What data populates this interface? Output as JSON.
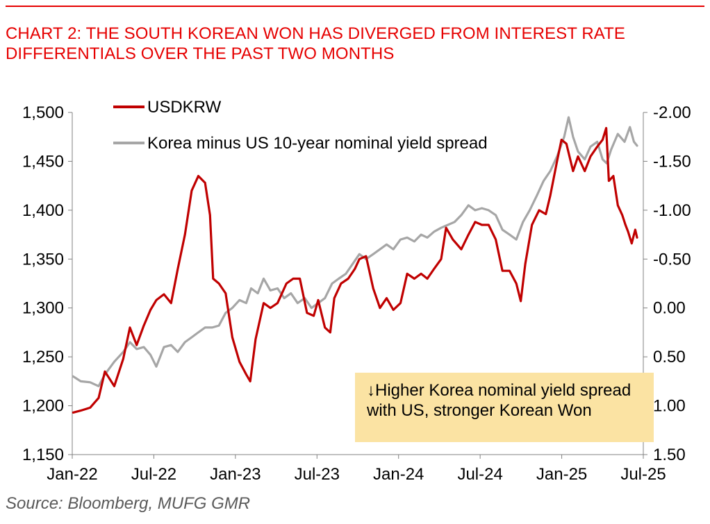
{
  "header": {
    "title": "CHART 2: THE SOUTH KOREAN WON HAS DIVERGED FROM INTEREST RATE DIFFERENTIALS OVER THE PAST TWO MONTHS"
  },
  "footer": {
    "source": "Source: Bloomberg, MUFG GMR"
  },
  "annotation": {
    "text": "↓Higher Korea nominal yield spread with US, stronger Korean Won"
  },
  "colors": {
    "title": "#e60000",
    "usdkrw": "#c00000",
    "spread": "#a6a6a6",
    "annotation_bg": "#fbe3a3",
    "axis": "#808080"
  },
  "chart_data": {
    "type": "line",
    "title": "CHART 2: THE SOUTH KOREAN WON HAS DIVERGED FROM INTEREST RATE DIFFERENTIALS OVER THE PAST TWO MONTHS",
    "x_tick_labels": [
      "Jan-22",
      "Jul-22",
      "Jan-23",
      "Jul-23",
      "Jan-24",
      "Jul-24",
      "Jan-25",
      "Jul-25"
    ],
    "x_range": [
      "2022-01-01",
      "2025-07-01"
    ],
    "y_left": {
      "ylim": [
        1150,
        1500
      ],
      "ticks": [
        1150,
        1200,
        1250,
        1300,
        1350,
        1400,
        1450,
        1500
      ],
      "tick_labels": [
        "1,150",
        "1,200",
        "1,250",
        "1,300",
        "1,350",
        "1,400",
        "1,450",
        "1,500"
      ]
    },
    "y_right": {
      "ylim": [
        1.5,
        -2.0
      ],
      "inverted": true,
      "ticks": [
        1.5,
        1.0,
        0.5,
        0.0,
        -0.5,
        -1.0,
        -1.5,
        -2.0
      ],
      "tick_labels": [
        "1.50",
        "1.00",
        "0.50",
        "0.00",
        "-0.50",
        "-1.00",
        "-1.50",
        "-2.00"
      ]
    },
    "grid": false,
    "legend_position": "top-left",
    "series": [
      {
        "name": "USDKRW",
        "axis": "left",
        "color": "#c00000",
        "points": [
          [
            "2022-01-03",
            1193
          ],
          [
            "2022-01-20",
            1195
          ],
          [
            "2022-02-10",
            1198
          ],
          [
            "2022-03-01",
            1208
          ],
          [
            "2022-03-15",
            1235
          ],
          [
            "2022-04-05",
            1220
          ],
          [
            "2022-04-25",
            1248
          ],
          [
            "2022-05-10",
            1280
          ],
          [
            "2022-05-25",
            1262
          ],
          [
            "2022-06-10",
            1282
          ],
          [
            "2022-06-25",
            1298
          ],
          [
            "2022-07-08",
            1308
          ],
          [
            "2022-07-25",
            1314
          ],
          [
            "2022-08-10",
            1305
          ],
          [
            "2022-08-25",
            1340
          ],
          [
            "2022-09-10",
            1375
          ],
          [
            "2022-09-25",
            1420
          ],
          [
            "2022-10-10",
            1435
          ],
          [
            "2022-10-25",
            1428
          ],
          [
            "2022-11-05",
            1395
          ],
          [
            "2022-11-12",
            1330
          ],
          [
            "2022-11-25",
            1325
          ],
          [
            "2022-12-10",
            1315
          ],
          [
            "2022-12-25",
            1270
          ],
          [
            "2023-01-10",
            1245
          ],
          [
            "2023-01-25",
            1232
          ],
          [
            "2023-02-03",
            1225
          ],
          [
            "2023-02-15",
            1268
          ],
          [
            "2023-03-05",
            1305
          ],
          [
            "2023-03-20",
            1300
          ],
          [
            "2023-04-05",
            1305
          ],
          [
            "2023-04-25",
            1325
          ],
          [
            "2023-05-10",
            1330
          ],
          [
            "2023-05-25",
            1330
          ],
          [
            "2023-06-10",
            1295
          ],
          [
            "2023-06-25",
            1292
          ],
          [
            "2023-07-05",
            1308
          ],
          [
            "2023-07-20",
            1280
          ],
          [
            "2023-08-01",
            1275
          ],
          [
            "2023-08-10",
            1310
          ],
          [
            "2023-08-25",
            1325
          ],
          [
            "2023-09-10",
            1330
          ],
          [
            "2023-09-25",
            1340
          ],
          [
            "2023-10-05",
            1350
          ],
          [
            "2023-10-20",
            1353
          ],
          [
            "2023-11-05",
            1320
          ],
          [
            "2023-11-20",
            1300
          ],
          [
            "2023-12-05",
            1310
          ],
          [
            "2023-12-20",
            1298
          ],
          [
            "2024-01-05",
            1305
          ],
          [
            "2024-01-20",
            1335
          ],
          [
            "2024-02-05",
            1330
          ],
          [
            "2024-02-20",
            1335
          ],
          [
            "2024-03-05",
            1330
          ],
          [
            "2024-03-20",
            1340
          ],
          [
            "2024-04-05",
            1350
          ],
          [
            "2024-04-16",
            1382
          ],
          [
            "2024-05-01",
            1370
          ],
          [
            "2024-05-20",
            1360
          ],
          [
            "2024-06-05",
            1375
          ],
          [
            "2024-06-20",
            1388
          ],
          [
            "2024-07-05",
            1385
          ],
          [
            "2024-07-20",
            1385
          ],
          [
            "2024-08-05",
            1370
          ],
          [
            "2024-08-20",
            1338
          ],
          [
            "2024-09-05",
            1338
          ],
          [
            "2024-09-20",
            1325
          ],
          [
            "2024-09-30",
            1307
          ],
          [
            "2024-10-10",
            1345
          ],
          [
            "2024-10-25",
            1385
          ],
          [
            "2024-11-10",
            1400
          ],
          [
            "2024-11-25",
            1396
          ],
          [
            "2024-12-05",
            1415
          ],
          [
            "2024-12-20",
            1450
          ],
          [
            "2024-12-30",
            1472
          ],
          [
            "2025-01-10",
            1468
          ],
          [
            "2025-01-25",
            1440
          ],
          [
            "2025-02-05",
            1455
          ],
          [
            "2025-02-20",
            1440
          ],
          [
            "2025-03-05",
            1455
          ],
          [
            "2025-03-20",
            1465
          ],
          [
            "2025-04-01",
            1472
          ],
          [
            "2025-04-09",
            1484
          ],
          [
            "2025-04-15",
            1430
          ],
          [
            "2025-04-25",
            1435
          ],
          [
            "2025-05-05",
            1405
          ],
          [
            "2025-05-15",
            1395
          ],
          [
            "2025-05-22",
            1385
          ],
          [
            "2025-05-28",
            1378
          ],
          [
            "2025-06-05",
            1366
          ],
          [
            "2025-06-10",
            1375
          ],
          [
            "2025-06-13",
            1380
          ],
          [
            "2025-06-17",
            1372
          ]
        ]
      },
      {
        "name": "Korea minus US 10-year nominal yield spread",
        "axis": "right",
        "color": "#a6a6a6",
        "points": [
          [
            "2022-01-03",
            0.7
          ],
          [
            "2022-01-20",
            0.75
          ],
          [
            "2022-02-10",
            0.76
          ],
          [
            "2022-03-01",
            0.8
          ],
          [
            "2022-03-15",
            0.68
          ],
          [
            "2022-04-05",
            0.55
          ],
          [
            "2022-04-25",
            0.45
          ],
          [
            "2022-05-10",
            0.35
          ],
          [
            "2022-05-25",
            0.42
          ],
          [
            "2022-06-10",
            0.4
          ],
          [
            "2022-06-25",
            0.48
          ],
          [
            "2022-07-08",
            0.6
          ],
          [
            "2022-07-25",
            0.4
          ],
          [
            "2022-08-10",
            0.38
          ],
          [
            "2022-08-25",
            0.45
          ],
          [
            "2022-09-10",
            0.35
          ],
          [
            "2022-09-25",
            0.3
          ],
          [
            "2022-10-10",
            0.25
          ],
          [
            "2022-10-25",
            0.2
          ],
          [
            "2022-11-10",
            0.2
          ],
          [
            "2022-11-25",
            0.18
          ],
          [
            "2022-12-10",
            0.05
          ],
          [
            "2022-12-25",
            0.0
          ],
          [
            "2023-01-10",
            -0.08
          ],
          [
            "2023-01-25",
            -0.05
          ],
          [
            "2023-02-05",
            -0.2
          ],
          [
            "2023-02-20",
            -0.15
          ],
          [
            "2023-03-05",
            -0.3
          ],
          [
            "2023-03-20",
            -0.18
          ],
          [
            "2023-04-05",
            -0.2
          ],
          [
            "2023-04-20",
            -0.1
          ],
          [
            "2023-05-05",
            -0.15
          ],
          [
            "2023-05-20",
            -0.05
          ],
          [
            "2023-06-05",
            -0.1
          ],
          [
            "2023-06-20",
            0.0
          ],
          [
            "2023-07-05",
            -0.05
          ],
          [
            "2023-07-20",
            -0.1
          ],
          [
            "2023-08-05",
            -0.25
          ],
          [
            "2023-08-20",
            -0.3
          ],
          [
            "2023-09-05",
            -0.35
          ],
          [
            "2023-09-20",
            -0.45
          ],
          [
            "2023-10-05",
            -0.55
          ],
          [
            "2023-10-20",
            -0.5
          ],
          [
            "2023-11-05",
            -0.55
          ],
          [
            "2023-11-20",
            -0.6
          ],
          [
            "2023-12-05",
            -0.65
          ],
          [
            "2023-12-20",
            -0.6
          ],
          [
            "2024-01-05",
            -0.7
          ],
          [
            "2024-01-20",
            -0.72
          ],
          [
            "2024-02-05",
            -0.68
          ],
          [
            "2024-02-20",
            -0.75
          ],
          [
            "2024-03-05",
            -0.72
          ],
          [
            "2024-03-20",
            -0.78
          ],
          [
            "2024-04-05",
            -0.82
          ],
          [
            "2024-04-20",
            -0.85
          ],
          [
            "2024-05-05",
            -0.88
          ],
          [
            "2024-05-20",
            -0.95
          ],
          [
            "2024-06-05",
            -1.05
          ],
          [
            "2024-06-20",
            -1.0
          ],
          [
            "2024-07-05",
            -1.02
          ],
          [
            "2024-07-20",
            -1.0
          ],
          [
            "2024-08-05",
            -0.95
          ],
          [
            "2024-08-20",
            -0.8
          ],
          [
            "2024-09-05",
            -0.75
          ],
          [
            "2024-09-20",
            -0.7
          ],
          [
            "2024-10-05",
            -0.88
          ],
          [
            "2024-10-20",
            -1.0
          ],
          [
            "2024-11-05",
            -1.15
          ],
          [
            "2024-11-20",
            -1.3
          ],
          [
            "2024-12-05",
            -1.4
          ],
          [
            "2024-12-20",
            -1.55
          ],
          [
            "2025-01-05",
            -1.75
          ],
          [
            "2025-01-15",
            -1.95
          ],
          [
            "2025-01-25",
            -1.75
          ],
          [
            "2025-02-05",
            -1.6
          ],
          [
            "2025-02-20",
            -1.52
          ],
          [
            "2025-03-05",
            -1.65
          ],
          [
            "2025-03-20",
            -1.7
          ],
          [
            "2025-04-01",
            -1.52
          ],
          [
            "2025-04-10",
            -1.48
          ],
          [
            "2025-04-20",
            -1.62
          ],
          [
            "2025-05-05",
            -1.78
          ],
          [
            "2025-05-20",
            -1.7
          ],
          [
            "2025-06-01",
            -1.85
          ],
          [
            "2025-06-10",
            -1.7
          ],
          [
            "2025-06-17",
            -1.66
          ]
        ]
      }
    ]
  }
}
